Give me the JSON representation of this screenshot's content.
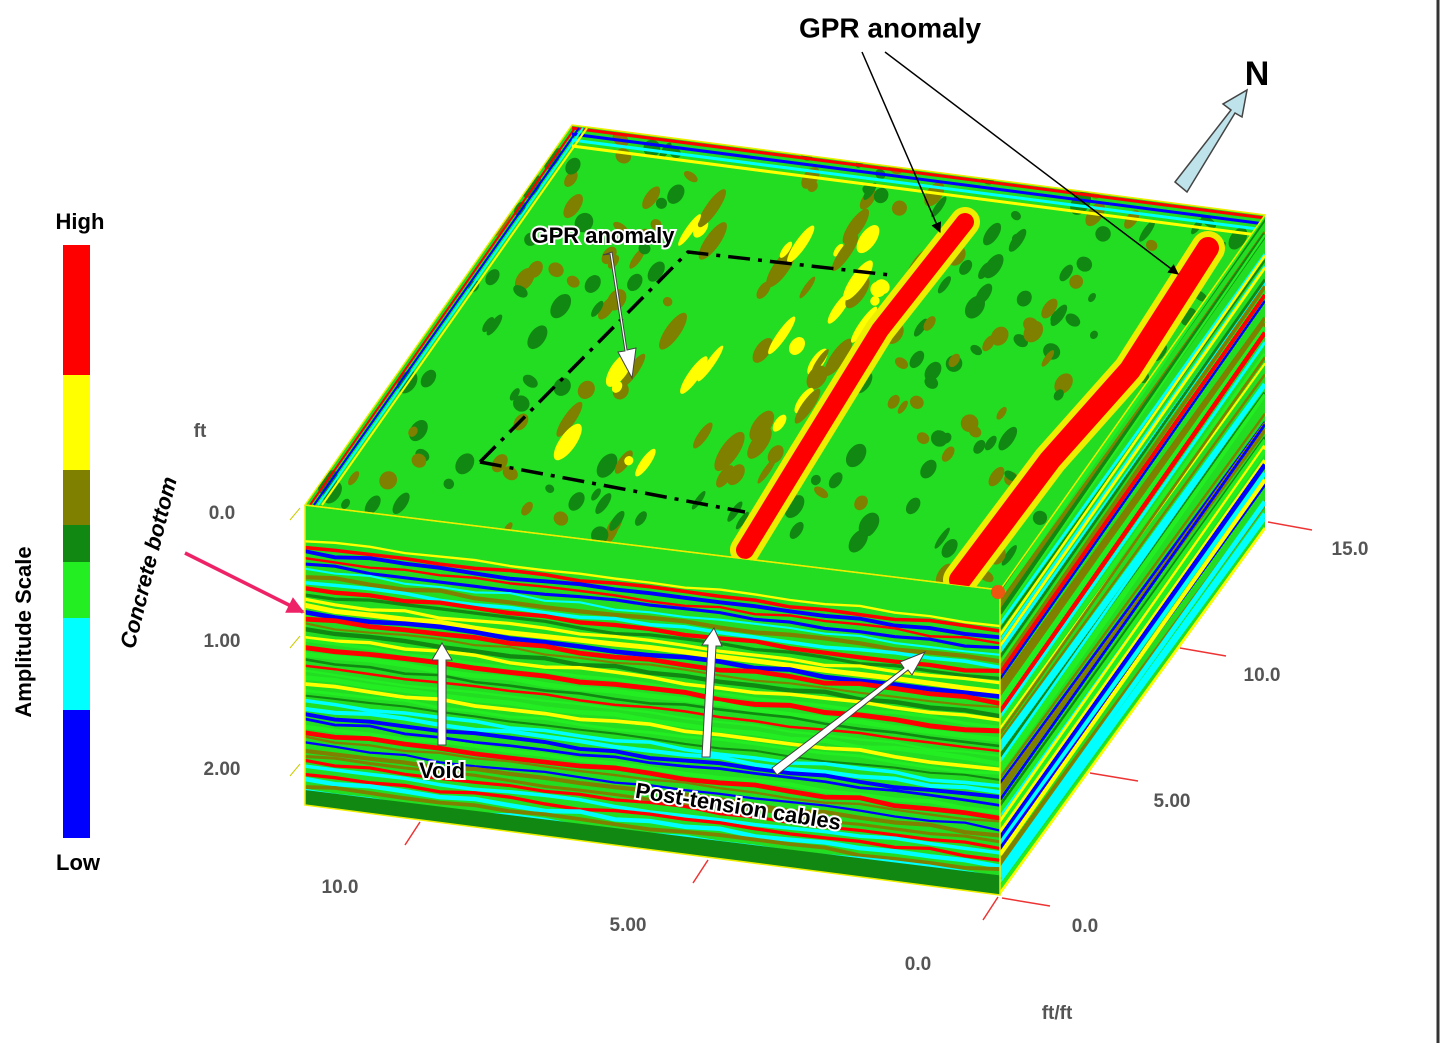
{
  "title": "GPR anomaly",
  "compass": "N",
  "legend": {
    "title": "Amplitude Scale",
    "high": "High",
    "low": "Low"
  },
  "depth_axis": {
    "unit": "ft",
    "ticks": [
      "0.0",
      "1.00",
      "2.00"
    ],
    "annotation": "Concrete bottom"
  },
  "right_axis": {
    "ticks": [
      "15.0",
      "10.0",
      "5.00",
      "0.0"
    ]
  },
  "bottom_axis": {
    "ticks": [
      "10.0",
      "5.00",
      "0.0"
    ],
    "unit": "ft/ft"
  },
  "annotations": {
    "inner_anomaly": "GPR anomaly",
    "void": "Void",
    "cables": "Post-tension cables"
  }
}
